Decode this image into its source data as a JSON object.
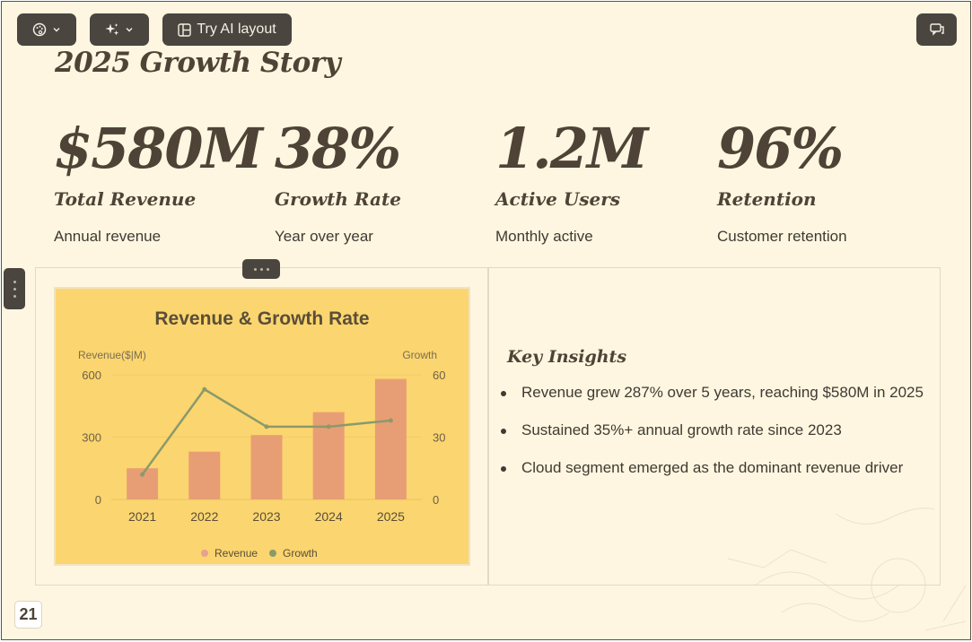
{
  "toolbar": {
    "theme_icon": "palette-icon",
    "ai_icon": "sparkles-icon",
    "ai_layout_label": "Try AI layout",
    "comment_icon": "comment-icon"
  },
  "slide": {
    "title": "2025 Growth Story",
    "page_number": "21",
    "stats": [
      {
        "value": "$580M",
        "label": "Total Revenue",
        "desc": "Annual revenue"
      },
      {
        "value": "38%",
        "label": "Growth Rate",
        "desc": "Year over year"
      },
      {
        "value": "1.2M",
        "label": "Active Users",
        "desc": "Monthly active"
      },
      {
        "value": "96%",
        "label": "Retention",
        "desc": "Customer retention"
      }
    ],
    "insights": {
      "title": "Key Insights",
      "items": [
        "Revenue grew 287% over 5 years, reaching $580M in 2025",
        "Sustained 35%+ annual growth rate since 2023",
        "Cloud segment emerged as the dominant revenue driver"
      ]
    }
  },
  "chart_data": {
    "type": "bar",
    "title": "Revenue & Growth Rate",
    "categories": [
      "2021",
      "2022",
      "2023",
      "2024",
      "2025"
    ],
    "series": [
      {
        "name": "Revenue",
        "type": "bar",
        "values": [
          150,
          230,
          310,
          420,
          580
        ],
        "color": "#e89e74"
      },
      {
        "name": "Growth",
        "type": "line",
        "values": [
          12,
          53,
          35,
          35,
          38
        ],
        "color": "#8a9a6a"
      }
    ],
    "ylabel_left": "Revenue($|M)",
    "ylabel_right": "Growth",
    "ylim_left": [
      0,
      600
    ],
    "ylim_right": [
      0,
      60
    ],
    "yticks_left": [
      "0",
      "300",
      "600"
    ],
    "yticks_right": [
      "0",
      "30",
      "60"
    ],
    "legend": "bottom",
    "grid": true
  }
}
